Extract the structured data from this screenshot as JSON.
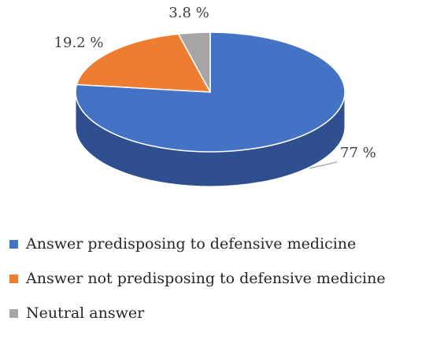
{
  "chart_data": {
    "type": "pie",
    "style": "3d",
    "title": "",
    "legend_placement": "bottom",
    "slices": [
      {
        "label": "Answer predisposing to defensive medicine",
        "value": 77,
        "display": "77 %",
        "color": "#4472C4",
        "side_color": "#2F4F8F"
      },
      {
        "label": "Answer not predisposing to defensive medicine",
        "value": 19.2,
        "display": "19.2 %",
        "color": "#ED7D31",
        "side_color": "#B35A1F"
      },
      {
        "label": "Neutral answer",
        "value": 3.8,
        "display": "3.8 %",
        "color": "#A5A5A5",
        "side_color": "#7C7C7C"
      }
    ]
  }
}
